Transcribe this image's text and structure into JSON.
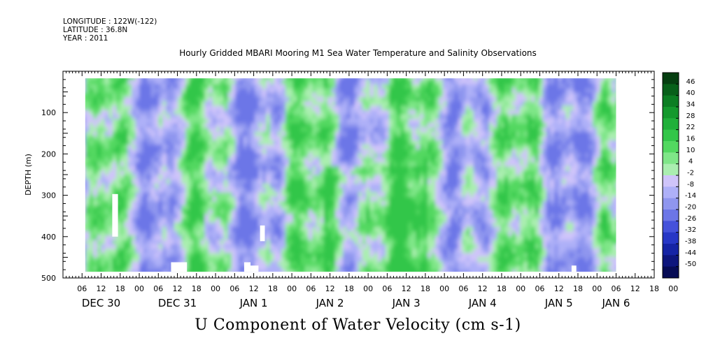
{
  "header": {
    "longitude": "LONGITUDE : 122W(-122)",
    "latitude": "LATITUDE : 36.8N",
    "year": "YEAR : 2011",
    "title": "Hourly Gridded MBARI Mooring M1 Sea Water Temperature and Salinity Observations"
  },
  "footer": {
    "variable_label": "U Component of Water Velocity (cm s-1)"
  },
  "chart_data": {
    "type": "heatmap",
    "title": "Hourly Gridded MBARI Mooring M1 Sea Water Temperature and Salinity Observations",
    "xlabel": "",
    "ylabel": "DEPTH (m)",
    "ylim": [
      500,
      0
    ],
    "y_ticks": [
      100,
      200,
      300,
      400,
      500
    ],
    "x_hour_labels": [
      "06",
      "12",
      "18",
      "00",
      "06",
      "12",
      "18",
      "00",
      "06",
      "12",
      "18",
      "00",
      "06",
      "12",
      "18",
      "00",
      "06",
      "12",
      "18",
      "00",
      "06",
      "12",
      "18",
      "00",
      "06",
      "12",
      "18",
      "00",
      "06",
      "12",
      "18",
      "00"
    ],
    "x_date_labels": [
      "DEC 30",
      "DEC 31",
      "JAN  1",
      "JAN  2",
      "JAN  3",
      "JAN  4",
      "JAN  5",
      "JAN  6"
    ],
    "x_range_hours": [
      0,
      186
    ],
    "data_hours": [
      7,
      174
    ],
    "depth_range": [
      17,
      485
    ],
    "colorbar_labels": [
      "46",
      "40",
      "34",
      "28",
      "22",
      "16",
      "10",
      "4",
      "-2",
      "-8",
      "-14",
      "-20",
      "-26",
      "-32",
      "-38",
      "-44",
      "-50"
    ],
    "colorbar_colors": [
      "#063f11",
      "#08601a",
      "#0c7e23",
      "#14992d",
      "#20b03a",
      "#33c649",
      "#52d860",
      "#7fe688",
      "#aaeeb0",
      "#cfc4fa",
      "#aeb0f8",
      "#8f96ef",
      "#6c76e7",
      "#4552db",
      "#2737c6",
      "#1624a5",
      "#0e167d",
      "#070c55"
    ],
    "missing_regions": [
      {
        "hours": [
          15.5,
          17.3
        ],
        "depth": [
          297,
          400
        ]
      },
      {
        "hours": [
          34,
          39
        ],
        "depth": [
          462,
          485
        ]
      },
      {
        "hours": [
          57,
          59
        ],
        "depth": [
          462,
          485
        ]
      },
      {
        "hours": [
          59,
          61.5
        ],
        "depth": [
          470,
          485
        ]
      },
      {
        "hours": [
          62,
          63.5
        ],
        "depth": [
          373,
          411
        ]
      },
      {
        "hours": [
          160,
          161.5
        ],
        "depth": [
          470,
          485
        ]
      }
    ],
    "field_description_values": "U velocity ranges roughly -20 to 20 cm/s; mostly weak positive (green) and weak negative (lavender) bands alternating in time",
    "grid": false,
    "legend_position": "right"
  }
}
